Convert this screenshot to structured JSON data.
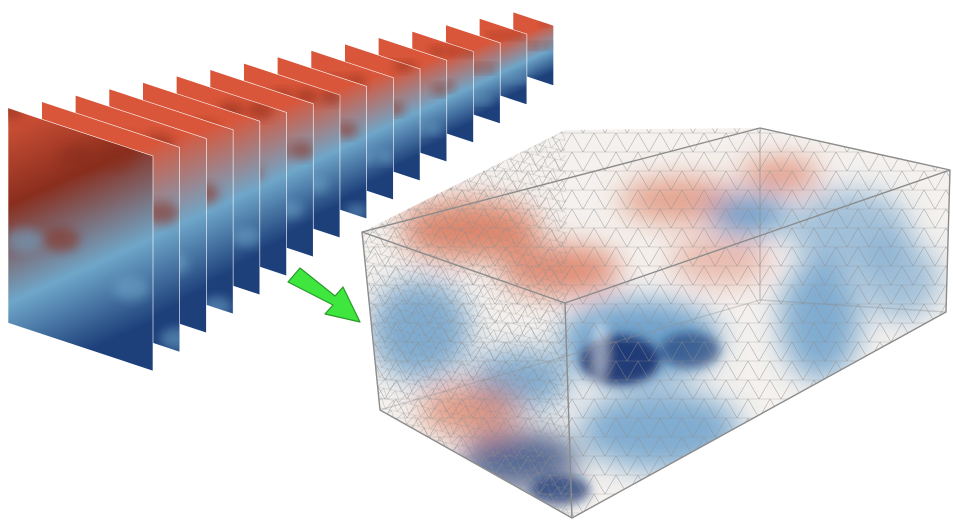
{
  "figure": {
    "slices": {
      "count": 16,
      "colors": {
        "warm": "#d9563a",
        "warm_dark": "#8a2e1e",
        "cool": "#6fa6c9",
        "cool_dark": "#1d3f7a"
      }
    },
    "arrow": {
      "icon": "right-down-arrow-icon",
      "color": "#3ee63e",
      "outline": "#2a9a2a"
    },
    "volume": {
      "mesh": "tetrahedral-mesh",
      "edge_color": "#8c8c8c",
      "colors": {
        "warm": "#d96a4a",
        "cool": "#4f8fc4",
        "cool_dark": "#16306e",
        "neutral": "#f4f1ee"
      }
    }
  }
}
